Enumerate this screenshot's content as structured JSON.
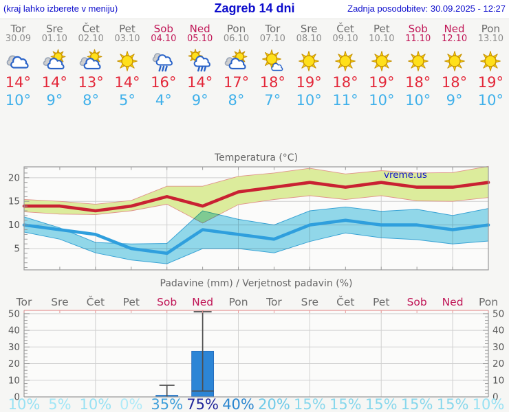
{
  "header": {
    "left_note": "(kraj lahko izberete v meniju)",
    "title": "Zagreb 14 dni",
    "updated": "Zadnja posodobitev: 30.09.2025 - 12:27"
  },
  "colors": {
    "link_blue": "#0c0ccc",
    "weekend": "#c01556",
    "weekday": "#6b6b6b",
    "date_gray": "#8c8c8c",
    "high_red": "#e32638",
    "low_blue": "#3fb0ea",
    "grid": "#d0d0d0",
    "spine": "#9a9a9a",
    "precip_top_spine": "#e79a9a",
    "bar_fill": "#2c85d6",
    "whisker": "#4d4d4d",
    "title_gray": "#666666",
    "tick_label": "#555555"
  },
  "forecast": {
    "days": [
      {
        "name": "Tor",
        "date": "30.09",
        "weekend": false,
        "icon": "cloudy",
        "high": "14°",
        "low": "10°"
      },
      {
        "name": "Sre",
        "date": "01.10",
        "weekend": false,
        "icon": "partly",
        "high": "14°",
        "low": "9°"
      },
      {
        "name": "Čet",
        "date": "02.10",
        "weekend": false,
        "icon": "partly",
        "high": "13°",
        "low": "8°"
      },
      {
        "name": "Pet",
        "date": "03.10",
        "weekend": false,
        "icon": "sunny",
        "high": "14°",
        "low": "5°"
      },
      {
        "name": "Sob",
        "date": "04.10",
        "weekend": true,
        "icon": "rain",
        "high": "16°",
        "low": "4°"
      },
      {
        "name": "Ned",
        "date": "05.10",
        "weekend": true,
        "icon": "sun-rain",
        "high": "14°",
        "low": "9°"
      },
      {
        "name": "Pon",
        "date": "06.10",
        "weekend": false,
        "icon": "partly",
        "high": "17°",
        "low": "8°"
      },
      {
        "name": "Tor",
        "date": "07.10",
        "weekend": false,
        "icon": "mostly-sunny",
        "high": "18°",
        "low": "7°"
      },
      {
        "name": "Sre",
        "date": "08.10",
        "weekend": false,
        "icon": "sunny",
        "high": "19°",
        "low": "10°"
      },
      {
        "name": "Čet",
        "date": "09.10",
        "weekend": false,
        "icon": "sunny",
        "high": "18°",
        "low": "11°"
      },
      {
        "name": "Pet",
        "date": "10.10",
        "weekend": false,
        "icon": "sunny",
        "high": "19°",
        "low": "10°"
      },
      {
        "name": "Sob",
        "date": "11.10",
        "weekend": true,
        "icon": "sunny",
        "high": "18°",
        "low": "10°"
      },
      {
        "name": "Ned",
        "date": "12.10",
        "weekend": true,
        "icon": "sunny",
        "high": "18°",
        "low": "9°"
      },
      {
        "name": "Pon",
        "date": "13.10",
        "weekend": false,
        "icon": "sunny",
        "high": "19°",
        "low": "10°"
      }
    ]
  },
  "chart_data": [
    {
      "type": "line",
      "title": "Temperatura (°C)",
      "watermark": "vreme.us",
      "x_days": [
        "Tor",
        "Sre",
        "Čet",
        "Pet",
        "Sob",
        "Ned",
        "Pon",
        "Tor",
        "Sre",
        "Čet",
        "Pet",
        "Sob",
        "Ned",
        "Pon"
      ],
      "ylim": [
        0.5,
        22.3
      ],
      "yticks": [
        5,
        10,
        15,
        20
      ],
      "grid": true,
      "series": [
        {
          "name": "max-temp",
          "color": "#c92132",
          "values": [
            14,
            14,
            13,
            14,
            16,
            14,
            17,
            18,
            19,
            18,
            19,
            18,
            18,
            19
          ]
        },
        {
          "name": "min-temp",
          "color": "#2f9fdd",
          "values": [
            10,
            9,
            8,
            5,
            4,
            9,
            8,
            7,
            10,
            11,
            10,
            10,
            9,
            10
          ]
        }
      ],
      "bands": [
        {
          "name": "max-range",
          "fill": "#dcec9c",
          "edge": "#e0938a",
          "upper": [
            15.4,
            15.0,
            14.4,
            15.2,
            18.2,
            18.2,
            20.3,
            21.0,
            22.0,
            20.8,
            21.5,
            21.0,
            21.1,
            22.4
          ],
          "lower": [
            12.8,
            12.3,
            12.2,
            13.0,
            14.4,
            10.4,
            14.3,
            15.4,
            16.2,
            15.4,
            16.2,
            15.1,
            15.0,
            15.8
          ]
        },
        {
          "name": "min-range",
          "fill": "#93dbee",
          "edge": "#3aa6da",
          "upper": [
            11.7,
            9.4,
            6.3,
            6.0,
            6.1,
            13.0,
            11.2,
            10.0,
            13.0,
            13.8,
            12.9,
            13.3,
            12.0,
            13.5
          ],
          "lower": [
            8.5,
            7.0,
            4.1,
            2.6,
            1.8,
            5.0,
            5.0,
            4.1,
            6.5,
            8.3,
            7.3,
            6.9,
            6.0,
            6.6
          ]
        }
      ]
    },
    {
      "type": "bar",
      "title": "Padavine (mm) / Verjetnost padavin (%)",
      "categories": [
        "Tor",
        "Sre",
        "Čet",
        "Pet",
        "Sob",
        "Ned",
        "Pon",
        "Tor",
        "Sre",
        "Čet",
        "Pet",
        "Sob",
        "Ned",
        "Pon"
      ],
      "weekend_flags": [
        false,
        false,
        false,
        false,
        true,
        true,
        false,
        false,
        false,
        false,
        false,
        true,
        true,
        false
      ],
      "values": [
        0,
        0,
        0,
        0,
        1,
        27.5,
        0,
        0,
        0,
        0,
        0,
        0,
        0,
        0
      ],
      "whisker_low": [
        null,
        null,
        null,
        null,
        0,
        3.5,
        null,
        null,
        null,
        null,
        null,
        null,
        null,
        null
      ],
      "whisker_high": [
        null,
        null,
        null,
        null,
        7,
        52.5,
        null,
        null,
        null,
        null,
        null,
        null,
        null,
        null
      ],
      "ylim": [
        0,
        52
      ],
      "yticks": [
        0,
        10,
        20,
        30,
        40,
        50
      ],
      "grid": true,
      "probabilities": [
        "10%",
        "5%",
        "10%",
        "0%",
        "35%",
        "75%",
        "40%",
        "20%",
        "15%",
        "15%",
        "15%",
        "15%",
        "15%",
        "10%"
      ],
      "prob_colors": [
        "#98e1f3",
        "#a2e6f6",
        "#98e1f3",
        "#aeeaf8",
        "#3f9fda",
        "#20269a",
        "#2b86cf",
        "#6ec9e8",
        "#87d7ec",
        "#87d7ec",
        "#87d7ec",
        "#87d7ec",
        "#87d7ec",
        "#98e1f3"
      ]
    }
  ]
}
